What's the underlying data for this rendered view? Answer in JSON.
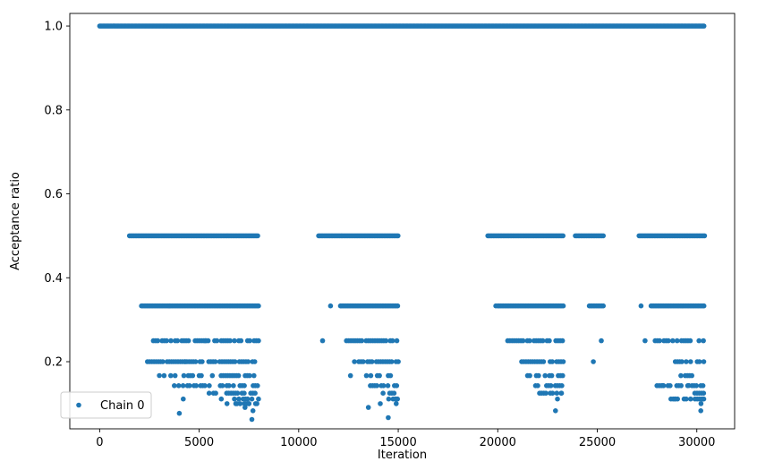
{
  "chart_data": {
    "type": "scatter",
    "xlabel": "Iteration",
    "ylabel": "Acceptance ratio",
    "xlim": [
      -1500,
      31900
    ],
    "ylim": [
      0.04,
      1.03
    ],
    "xticks": [
      0,
      5000,
      10000,
      15000,
      20000,
      25000,
      30000
    ],
    "yticks": [
      0.2,
      0.4,
      0.6,
      0.8,
      1.0
    ],
    "xtick_labels": [
      "0",
      "5000",
      "10000",
      "15000",
      "20000",
      "25000",
      "30000"
    ],
    "ytick_labels": [
      "0.2",
      "0.4",
      "0.6",
      "0.8",
      "1.0"
    ],
    "grid": false,
    "legend_position": "lower-left",
    "color": "#1f77b4",
    "series": [
      {
        "name": "Chain 0",
        "bands": [
          {
            "y": 1.0,
            "x_start": 0,
            "x_end": 30400
          },
          {
            "y": 0.5,
            "x_start": 1500,
            "x_end": 8000
          },
          {
            "y": 0.5,
            "x_start": 11000,
            "x_end": 15000
          },
          {
            "y": 0.5,
            "x_start": 19500,
            "x_end": 23300
          },
          {
            "y": 0.5,
            "x_start": 23900,
            "x_end": 25300
          },
          {
            "y": 0.5,
            "x_start": 27100,
            "x_end": 30400
          },
          {
            "y": 0.333,
            "x_start": 2100,
            "x_end": 8000
          },
          {
            "y": 0.333,
            "x_start": 12100,
            "x_end": 15000
          },
          {
            "y": 0.333,
            "x_start": 20000,
            "x_end": 23300
          },
          {
            "y": 0.333,
            "x_start": 24600,
            "x_end": 25300
          },
          {
            "y": 0.333,
            "x_start": 27700,
            "x_end": 30400
          },
          {
            "y": 0.25,
            "x_start": 2700,
            "x_end": 8000
          },
          {
            "y": 0.25,
            "x_start": 12400,
            "x_end": 15000
          },
          {
            "y": 0.25,
            "x_start": 20500,
            "x_end": 23300
          },
          {
            "y": 0.25,
            "x_start": 27800,
            "x_end": 30400
          },
          {
            "y": 0.2,
            "x_start": 2400,
            "x_end": 8000
          },
          {
            "y": 0.2,
            "x_start": 12800,
            "x_end": 15000
          },
          {
            "y": 0.2,
            "x_start": 21200,
            "x_end": 23300
          },
          {
            "y": 0.2,
            "x_start": 28700,
            "x_end": 30400
          },
          {
            "y": 0.1667,
            "x_start": 2800,
            "x_end": 8000
          },
          {
            "y": 0.1667,
            "x_start": 13400,
            "x_end": 15000
          },
          {
            "y": 0.1667,
            "x_start": 21500,
            "x_end": 23300
          },
          {
            "y": 0.1667,
            "x_start": 29200,
            "x_end": 30400
          },
          {
            "y": 0.1429,
            "x_start": 3200,
            "x_end": 8000
          },
          {
            "y": 0.1429,
            "x_start": 13600,
            "x_end": 15000
          },
          {
            "y": 0.1429,
            "x_start": 21900,
            "x_end": 23300
          },
          {
            "y": 0.1429,
            "x_start": 28000,
            "x_end": 30400
          },
          {
            "y": 0.125,
            "x_start": 5500,
            "x_end": 8000
          },
          {
            "y": 0.125,
            "x_start": 13800,
            "x_end": 15000
          },
          {
            "y": 0.125,
            "x_start": 22200,
            "x_end": 23300
          },
          {
            "y": 0.125,
            "x_start": 29900,
            "x_end": 30400
          },
          {
            "y": 0.111,
            "x_start": 6000,
            "x_end": 8000
          },
          {
            "y": 0.111,
            "x_start": 14300,
            "x_end": 15000
          },
          {
            "y": 0.111,
            "x_start": 28700,
            "x_end": 30400
          },
          {
            "y": 0.1,
            "x_start": 6400,
            "x_end": 8000
          },
          {
            "y": 0.1,
            "x_start": 14900,
            "x_end": 15000
          },
          {
            "y": 0.1,
            "x_start": 30100,
            "x_end": 30400
          }
        ],
        "points": [
          {
            "x": 3500,
            "y": 0.333
          },
          {
            "x": 11600,
            "y": 0.333
          },
          {
            "x": 11200,
            "y": 0.25
          },
          {
            "x": 12600,
            "y": 0.1667
          },
          {
            "x": 19900,
            "y": 0.333
          },
          {
            "x": 25200,
            "y": 0.25
          },
          {
            "x": 24800,
            "y": 0.2
          },
          {
            "x": 27200,
            "y": 0.333
          },
          {
            "x": 27400,
            "y": 0.25
          },
          {
            "x": 4800,
            "y": 0.25
          },
          {
            "x": 5300,
            "y": 0.25
          },
          {
            "x": 4300,
            "y": 0.2
          },
          {
            "x": 3000,
            "y": 0.167
          },
          {
            "x": 4200,
            "y": 0.111
          },
          {
            "x": 4000,
            "y": 0.077
          },
          {
            "x": 6900,
            "y": 0.1
          },
          {
            "x": 7300,
            "y": 0.091
          },
          {
            "x": 7500,
            "y": 0.1
          },
          {
            "x": 7700,
            "y": 0.083
          },
          {
            "x": 7900,
            "y": 0.1
          },
          {
            "x": 7650,
            "y": 0.0625
          },
          {
            "x": 13500,
            "y": 0.091
          },
          {
            "x": 14100,
            "y": 0.1
          },
          {
            "x": 14500,
            "y": 0.0667
          },
          {
            "x": 14900,
            "y": 0.111
          },
          {
            "x": 23000,
            "y": 0.111
          },
          {
            "x": 23200,
            "y": 0.125
          },
          {
            "x": 22900,
            "y": 0.083
          },
          {
            "x": 22100,
            "y": 0.125
          },
          {
            "x": 28300,
            "y": 0.143
          },
          {
            "x": 28900,
            "y": 0.111
          },
          {
            "x": 29600,
            "y": 0.143
          },
          {
            "x": 30200,
            "y": 0.083
          },
          {
            "x": 30300,
            "y": 0.111
          }
        ]
      }
    ]
  }
}
